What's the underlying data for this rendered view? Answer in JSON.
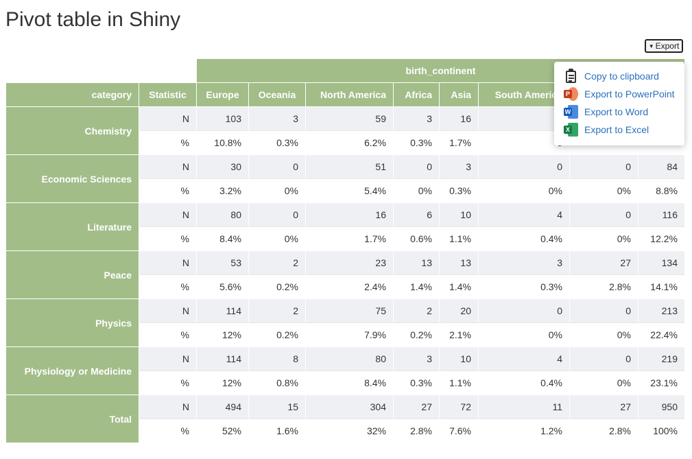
{
  "page": {
    "title": "Pivot table in Shiny"
  },
  "export": {
    "button_label": "Export",
    "menu": [
      {
        "label": "Copy to clipboard",
        "icon": "clipboard-icon"
      },
      {
        "label": "Export to PowerPoint",
        "icon": "powerpoint-icon"
      },
      {
        "label": "Export to Word",
        "icon": "word-icon"
      },
      {
        "label": "Export to Excel",
        "icon": "excel-icon"
      }
    ]
  },
  "table": {
    "group_header": "birth_continent",
    "row_header": "category",
    "stat_header": "Statistic",
    "columns": [
      "Europe",
      "Oceania",
      "North America",
      "Africa",
      "Asia",
      "South America",
      "",
      ""
    ],
    "rows": [
      {
        "category": "Chemistry",
        "N": [
          "103",
          "3",
          "59",
          "3",
          "16",
          "",
          "",
          ""
        ],
        "P": [
          "10.8%",
          "0.3%",
          "6.2%",
          "0.3%",
          "1.7%",
          "0",
          "",
          ""
        ]
      },
      {
        "category": "Economic Sciences",
        "N": [
          "30",
          "0",
          "51",
          "0",
          "3",
          "0",
          "0",
          "84"
        ],
        "P": [
          "3.2%",
          "0%",
          "5.4%",
          "0%",
          "0.3%",
          "0%",
          "0%",
          "8.8%"
        ]
      },
      {
        "category": "Literature",
        "N": [
          "80",
          "0",
          "16",
          "6",
          "10",
          "4",
          "0",
          "116"
        ],
        "P": [
          "8.4%",
          "0%",
          "1.7%",
          "0.6%",
          "1.1%",
          "0.4%",
          "0%",
          "12.2%"
        ]
      },
      {
        "category": "Peace",
        "N": [
          "53",
          "2",
          "23",
          "13",
          "13",
          "3",
          "27",
          "134"
        ],
        "P": [
          "5.6%",
          "0.2%",
          "2.4%",
          "1.4%",
          "1.4%",
          "0.3%",
          "2.8%",
          "14.1%"
        ]
      },
      {
        "category": "Physics",
        "N": [
          "114",
          "2",
          "75",
          "2",
          "20",
          "0",
          "0",
          "213"
        ],
        "P": [
          "12%",
          "0.2%",
          "7.9%",
          "0.2%",
          "2.1%",
          "0%",
          "0%",
          "22.4%"
        ]
      },
      {
        "category": "Physiology or Medicine",
        "N": [
          "114",
          "8",
          "80",
          "3",
          "10",
          "4",
          "0",
          "219"
        ],
        "P": [
          "12%",
          "0.8%",
          "8.4%",
          "0.3%",
          "1.1%",
          "0.4%",
          "0%",
          "23.1%"
        ]
      },
      {
        "category": "Total",
        "N": [
          "494",
          "15",
          "304",
          "27",
          "72",
          "11",
          "27",
          "950"
        ],
        "P": [
          "52%",
          "1.6%",
          "32%",
          "2.8%",
          "7.6%",
          "1.2%",
          "2.8%",
          "100%"
        ]
      }
    ],
    "stat_labels": {
      "N": "N",
      "P": "%"
    }
  }
}
